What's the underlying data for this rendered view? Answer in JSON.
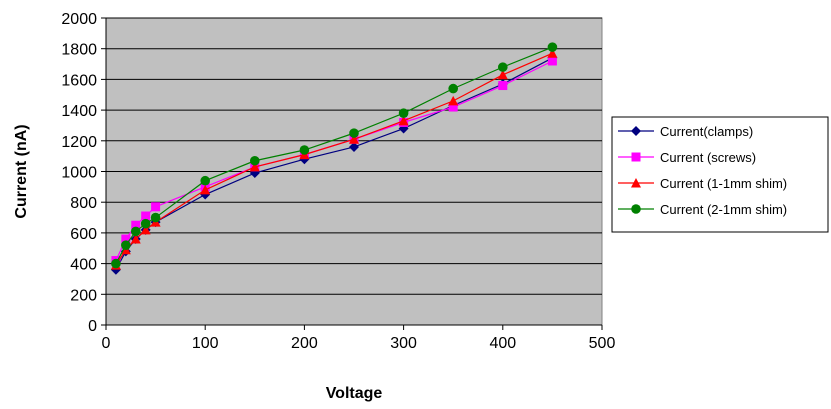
{
  "chart_data": {
    "type": "line",
    "title": "",
    "xlabel": "Voltage",
    "ylabel": "Current (nA)",
    "xlim": [
      0,
      500
    ],
    "ylim": [
      0,
      2000
    ],
    "x_ticks": [
      0,
      100,
      200,
      300,
      400,
      500
    ],
    "y_ticks": [
      0,
      200,
      400,
      600,
      800,
      1000,
      1200,
      1400,
      1600,
      1800,
      2000
    ],
    "plot_background": "#c0c0c0",
    "grid": true,
    "legend_position": "right",
    "series": [
      {
        "name": "Current(clamps)",
        "color": "#000080",
        "marker": "diamond",
        "x": [
          10,
          20,
          30,
          40,
          50,
          100,
          150,
          200,
          250,
          300,
          350,
          400,
          450
        ],
        "y": [
          360,
          480,
          560,
          620,
          670,
          850,
          990,
          1080,
          1160,
          1280,
          1430,
          1570,
          1740
        ]
      },
      {
        "name": "Current (screws)",
        "color": "#ff00ff",
        "marker": "square",
        "x": [
          10,
          20,
          30,
          40,
          50,
          100,
          150,
          200,
          250,
          300,
          350,
          400,
          450
        ],
        "y": [
          420,
          560,
          650,
          710,
          770,
          900,
          1030,
          1110,
          1210,
          1320,
          1420,
          1560,
          1720
        ]
      },
      {
        "name": "Current (1-1mm shim)",
        "color": "#ff0000",
        "marker": "triangle",
        "x": [
          10,
          20,
          30,
          40,
          50,
          100,
          150,
          200,
          250,
          300,
          350,
          400,
          450
        ],
        "y": [
          390,
          490,
          560,
          620,
          670,
          880,
          1030,
          1110,
          1210,
          1330,
          1460,
          1630,
          1770
        ]
      },
      {
        "name": "Current (2-1mm shim)",
        "color": "#008000",
        "marker": "circle",
        "x": [
          10,
          20,
          30,
          40,
          50,
          100,
          150,
          200,
          250,
          300,
          350,
          400,
          450
        ],
        "y": [
          400,
          520,
          610,
          660,
          700,
          940,
          1070,
          1140,
          1250,
          1380,
          1540,
          1680,
          1810
        ]
      }
    ]
  }
}
